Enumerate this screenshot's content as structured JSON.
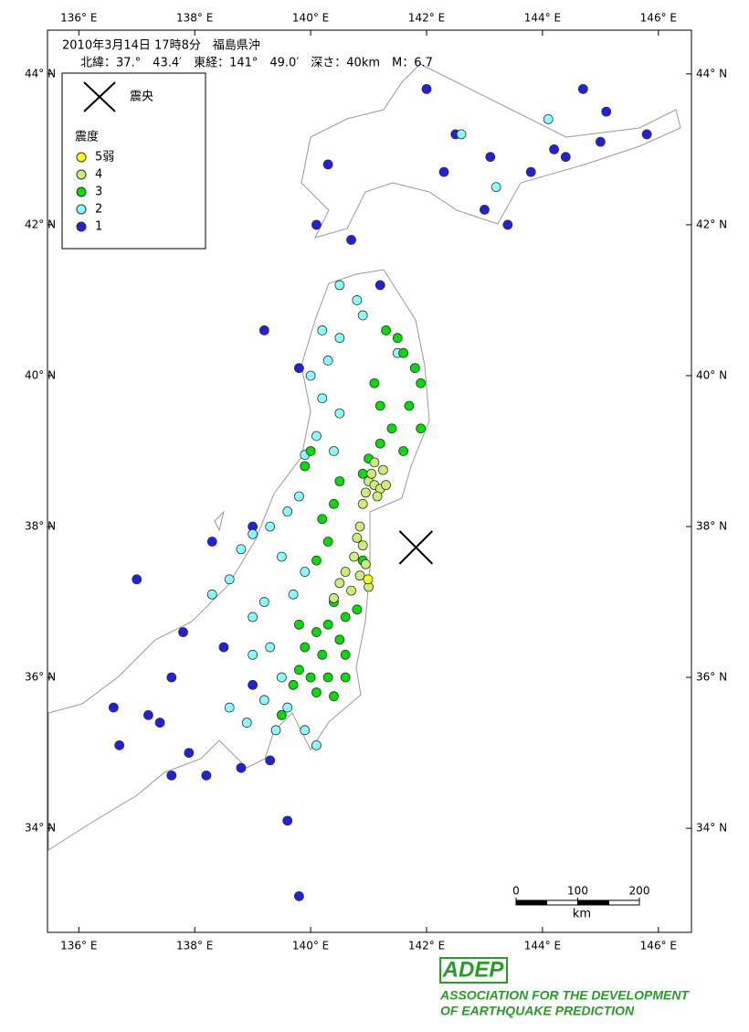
{
  "chart_data": {
    "type": "map",
    "title": "2010年3月14日 17時8分　福島県沖",
    "subtitle": "北緯：37.°　43.4′　東経：141°　49.0′　深さ：40km　M：6.7",
    "xlim": [
      135.46,
      146.57
    ],
    "ylim": [
      32.62,
      44.58
    ],
    "xticks": [
      {
        "value": 136,
        "label": "136° E"
      },
      {
        "value": 138,
        "label": "138° E"
      },
      {
        "value": 140,
        "label": "140° E"
      },
      {
        "value": 142,
        "label": "142° E"
      },
      {
        "value": 144,
        "label": "144° E"
      },
      {
        "value": 146,
        "label": "146° E"
      }
    ],
    "yticks": [
      {
        "value": 34,
        "label": "34° N"
      },
      {
        "value": 36,
        "label": "36° N"
      },
      {
        "value": 38,
        "label": "38° N"
      },
      {
        "value": 40,
        "label": "40° N"
      },
      {
        "value": 42,
        "label": "42° N"
      },
      {
        "value": 44,
        "label": "44° N"
      }
    ],
    "epicenter": {
      "name": "震央",
      "x": 141.817,
      "y": 37.723
    },
    "legend_title": "震度",
    "series": [
      {
        "name": "5弱",
        "color": "#ffff00",
        "x": [
          140.99
        ],
        "y": [
          37.3
        ]
      },
      {
        "name": "4",
        "color": "#ccee77",
        "x": [
          141.0,
          141.1,
          141.2,
          140.95,
          141.05,
          141.3,
          141.15,
          140.9,
          140.85,
          140.8,
          140.9,
          140.75,
          140.95,
          140.6,
          140.85,
          140.5,
          140.7,
          141.0,
          140.4,
          141.25,
          141.1
        ],
        "y": [
          38.6,
          38.55,
          38.5,
          38.45,
          38.7,
          38.55,
          38.4,
          38.3,
          38.0,
          37.85,
          37.75,
          37.6,
          37.5,
          37.4,
          37.35,
          37.25,
          37.15,
          37.2,
          37.05,
          38.75,
          38.85
        ]
      },
      {
        "name": "3",
        "color": "#00dd00",
        "x": [
          141.6,
          141.8,
          141.9,
          141.7,
          141.9,
          141.6,
          141.4,
          141.2,
          141.1,
          141.3,
          141.5,
          141.2,
          141.0,
          140.9,
          140.5,
          140.4,
          140.2,
          140.3,
          140.1,
          140.4,
          140.6,
          140.3,
          140.1,
          140.5,
          139.9,
          140.2,
          140.6,
          139.8,
          140.0,
          140.3,
          140.6,
          139.7,
          140.1,
          140.4,
          139.5,
          139.8,
          140.8,
          140.9,
          140.0,
          139.9
        ],
        "y": [
          40.3,
          40.1,
          39.9,
          39.6,
          39.3,
          39.0,
          39.3,
          39.6,
          39.9,
          40.6,
          40.5,
          39.1,
          38.9,
          38.7,
          38.6,
          38.3,
          38.1,
          37.8,
          37.55,
          37.0,
          36.8,
          36.7,
          36.6,
          36.5,
          36.4,
          36.3,
          36.3,
          36.1,
          36.0,
          36.0,
          36.0,
          35.9,
          35.8,
          35.75,
          35.5,
          36.7,
          36.9,
          37.55,
          39.0,
          38.8
        ]
      },
      {
        "name": "2",
        "color": "#88ffff",
        "x": [
          140.5,
          140.3,
          140.0,
          140.2,
          140.5,
          140.1,
          139.9,
          140.4,
          139.8,
          139.6,
          139.3,
          139.0,
          138.8,
          139.5,
          139.9,
          139.7,
          139.2,
          139.0,
          138.6,
          138.3,
          139.3,
          139.0,
          139.5,
          139.2,
          139.6,
          139.9,
          140.1,
          139.4,
          138.9,
          138.6,
          140.8,
          140.5,
          140.9,
          142.6,
          144.1,
          143.2,
          140.2,
          141.5
        ],
        "y": [
          40.5,
          40.2,
          40.0,
          39.7,
          39.5,
          39.2,
          38.95,
          39.0,
          38.4,
          38.2,
          38.0,
          37.9,
          37.7,
          37.6,
          37.4,
          37.1,
          37.0,
          36.8,
          37.3,
          37.1,
          36.4,
          36.3,
          36.0,
          35.7,
          35.6,
          35.3,
          35.1,
          35.3,
          35.4,
          35.6,
          41.0,
          41.2,
          40.8,
          43.2,
          43.4,
          42.5,
          40.6,
          40.3
        ]
      },
      {
        "name": "1",
        "color": "#2020e0",
        "x": [
          142.0,
          142.5,
          142.3,
          143.0,
          143.4,
          143.8,
          144.4,
          145.0,
          145.8,
          144.7,
          145.1,
          144.2,
          143.1,
          140.3,
          140.1,
          140.7,
          141.2,
          139.2,
          139.8,
          139.0,
          138.3,
          137.0,
          137.8,
          137.6,
          137.4,
          137.9,
          137.6,
          138.2,
          138.8,
          139.3,
          139.6,
          139.8,
          136.6,
          136.7,
          137.2,
          138.5,
          139.0
        ],
        "y": [
          43.8,
          43.2,
          42.7,
          42.2,
          42.0,
          42.7,
          42.9,
          43.1,
          43.2,
          43.8,
          43.5,
          43.0,
          42.9,
          42.8,
          42.0,
          41.8,
          41.2,
          40.6,
          40.1,
          38.0,
          37.8,
          37.3,
          36.6,
          36.0,
          35.4,
          35.0,
          34.7,
          34.7,
          34.8,
          34.9,
          34.1,
          33.1,
          35.6,
          35.1,
          35.5,
          36.4,
          35.9
        ]
      }
    ],
    "scale": {
      "ticks": [
        0,
        100,
        200
      ],
      "unit": "km"
    }
  },
  "logo": {
    "mark": "ADEP",
    "line1": "ASSOCIATION FOR THE DEVELOPMENT",
    "line2": "OF EARTHQUAKE PREDICTION"
  }
}
